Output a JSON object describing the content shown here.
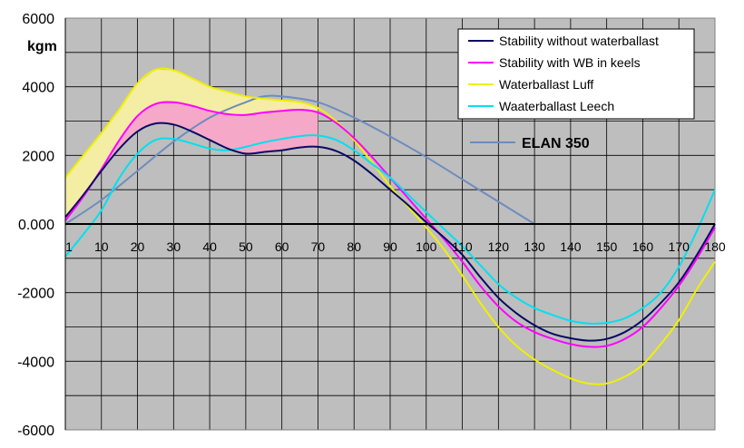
{
  "chart_data": {
    "type": "line",
    "ylabel": "kgm",
    "xlim": [
      0,
      180
    ],
    "ylim": [
      -6000,
      6000
    ],
    "grid": true,
    "legend_placement": "top-right",
    "x_ticks": [
      1,
      10,
      20,
      30,
      40,
      50,
      60,
      70,
      80,
      90,
      100,
      110,
      120,
      130,
      140,
      150,
      160,
      170,
      180
    ],
    "x_tick_labels": [
      "1",
      "10",
      "20",
      "30",
      "40",
      "50",
      "60",
      "70",
      "80",
      "90",
      "100",
      "110",
      "120",
      "130",
      "140",
      "150",
      "160",
      "170",
      "180"
    ],
    "y_ticks": [
      6000,
      4000,
      2000,
      0,
      -2000,
      -4000,
      -6000
    ],
    "y_tick_labels": [
      "6000",
      "4000",
      "2000",
      "0.000",
      "-2000",
      "-4000",
      "-6000"
    ],
    "x": [
      0,
      5,
      10,
      15,
      20,
      25,
      30,
      35,
      40,
      45,
      50,
      55,
      60,
      65,
      70,
      75,
      80,
      85,
      90,
      95,
      100,
      105,
      110,
      115,
      120,
      125,
      130,
      135,
      140,
      145,
      150,
      155,
      160,
      165,
      170,
      175,
      180
    ],
    "series": [
      {
        "name": "Stability without waterballast",
        "color": "#0a0a64",
        "values": [
          200,
          850,
          1550,
          2200,
          2700,
          2930,
          2900,
          2700,
          2450,
          2200,
          2050,
          2100,
          2150,
          2230,
          2250,
          2130,
          1850,
          1450,
          1000,
          550,
          50,
          -400,
          -900,
          -1550,
          -2150,
          -2600,
          -2950,
          -3200,
          -3330,
          -3400,
          -3350,
          -3150,
          -2800,
          -2300,
          -1700,
          -900,
          0
        ]
      },
      {
        "name": "Stability with WB in keels",
        "color": "#ff00ff",
        "values": [
          100,
          800,
          1600,
          2450,
          3150,
          3500,
          3550,
          3450,
          3300,
          3200,
          3180,
          3250,
          3300,
          3330,
          3250,
          2950,
          2500,
          1950,
          1350,
          750,
          150,
          -450,
          -1100,
          -1800,
          -2400,
          -2850,
          -3150,
          -3350,
          -3500,
          -3580,
          -3550,
          -3350,
          -3000,
          -2450,
          -1800,
          -1000,
          -100
        ]
      },
      {
        "name": "Waterballast Luff",
        "color": "#f0f000",
        "values": [
          1350,
          2000,
          2650,
          3350,
          4100,
          4500,
          4480,
          4250,
          4000,
          3850,
          3720,
          3650,
          3600,
          3550,
          3380,
          3000,
          2450,
          1800,
          1100,
          500,
          -100,
          -750,
          -1500,
          -2300,
          -3000,
          -3550,
          -3950,
          -4250,
          -4500,
          -4650,
          -4650,
          -4450,
          -4100,
          -3500,
          -2800,
          -1900,
          -1100
        ]
      },
      {
        "name": "Waaterballast Leech",
        "color": "#00e0f0",
        "values": [
          -950,
          -300,
          400,
          1350,
          2050,
          2450,
          2480,
          2350,
          2200,
          2150,
          2250,
          2380,
          2480,
          2560,
          2580,
          2450,
          2150,
          1750,
          1350,
          850,
          350,
          -150,
          -650,
          -1200,
          -1750,
          -2150,
          -2450,
          -2650,
          -2820,
          -2900,
          -2880,
          -2750,
          -2450,
          -2000,
          -1250,
          -200,
          1000
        ]
      },
      {
        "name": "ELAN 350",
        "color": "#6e8cbe",
        "x": [
          0,
          10,
          20,
          30,
          40,
          50,
          55,
          60,
          70,
          80,
          90,
          100,
          110,
          120,
          130
        ],
        "values": [
          0,
          700,
          1550,
          2400,
          3100,
          3550,
          3720,
          3720,
          3550,
          3100,
          2550,
          1950,
          1300,
          650,
          0
        ]
      }
    ],
    "legend": [
      "Stability without waterballast",
      "Stability with WB in keels",
      "Waterballast Luff",
      "Waaterballast Leech"
    ],
    "annotation": "ELAN 350"
  }
}
